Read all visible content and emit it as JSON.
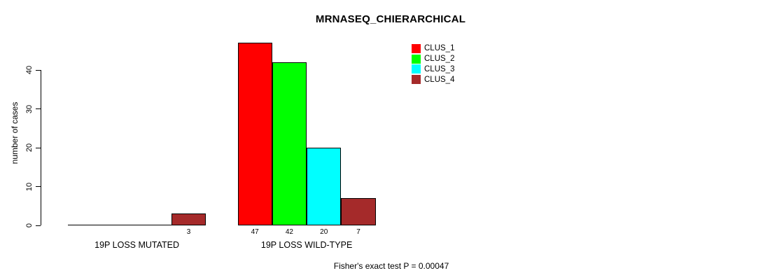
{
  "chart_data": {
    "type": "bar",
    "title": "MRNASEQ_CHIERARCHICAL",
    "ylabel": "number of cases",
    "xlabel": "",
    "categories": [
      "19P LOSS MUTATED",
      "19P LOSS WILD-TYPE"
    ],
    "series": [
      {
        "name": "CLUS_1",
        "color": "#ff0000",
        "values": [
          0,
          47
        ]
      },
      {
        "name": "CLUS_2",
        "color": "#00ff00",
        "values": [
          0,
          42
        ]
      },
      {
        "name": "CLUS_3",
        "color": "#00ffff",
        "values": [
          0,
          20
        ]
      },
      {
        "name": "CLUS_4",
        "color": "#a52a2a",
        "values": [
          3,
          7
        ]
      }
    ],
    "bar_value_labels": {
      "shown": true,
      "hide_zero": true
    },
    "yticks": [
      0,
      10,
      20,
      30,
      40
    ],
    "ylim": [
      0,
      47
    ],
    "grid": false,
    "legend_position": "top-right",
    "annotation": "Fisher's exact test P = 0.00047"
  }
}
